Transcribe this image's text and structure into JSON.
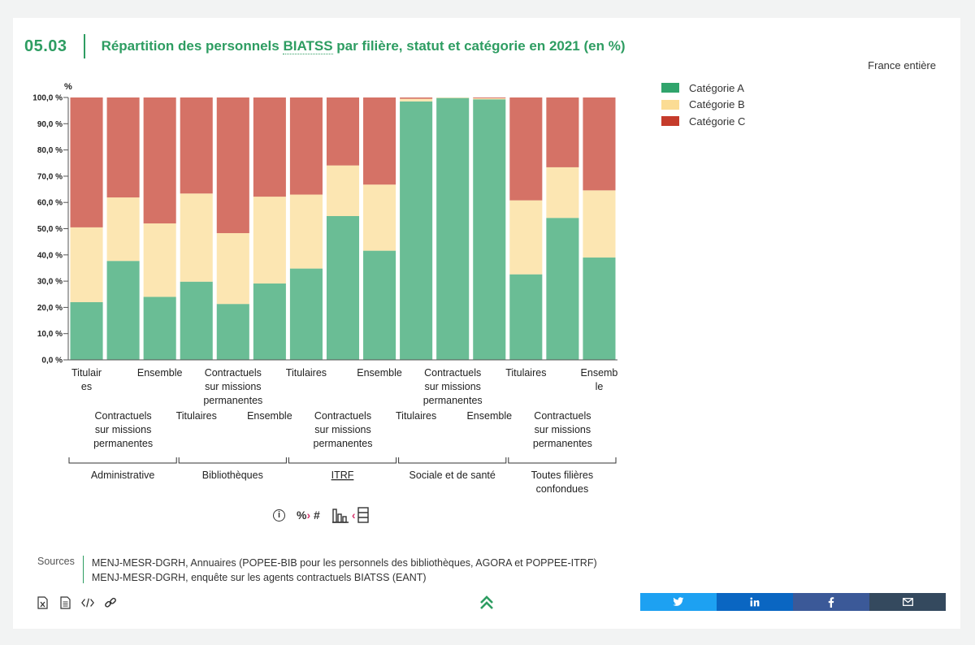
{
  "header": {
    "figure_number": "05.03",
    "title_before": "Répartition des personnels ",
    "title_abbr": "BIATSS",
    "title_after": " par filière, statut et catégorie en 2021 (en %)",
    "scope": "France entière"
  },
  "legend": {
    "items": [
      {
        "label": "Catégorie A",
        "color": "#30a46c"
      },
      {
        "label": "Catégorie B",
        "color": "#fbdc94"
      },
      {
        "label": "Catégorie C",
        "color": "#c53b2b"
      }
    ]
  },
  "chart_data": {
    "type": "bar",
    "stacked": true,
    "y_unit_label": "%",
    "ylim": [
      0,
      100
    ],
    "yticks": [
      0,
      10,
      20,
      30,
      40,
      50,
      60,
      70,
      80,
      90,
      100
    ],
    "ytick_labels": [
      "0,0 %",
      "10,0 %",
      "20,0 %",
      "30,0 %",
      "40,0 %",
      "50,0 %",
      "60,0 %",
      "70,0 %",
      "80,0 %",
      "90,0 %",
      "100,0 %"
    ],
    "groups": [
      {
        "label": "Administrative",
        "categories": [
          "Titulaires",
          "Contractuels sur missions permanentes",
          "Ensemble"
        ]
      },
      {
        "label": "Bibliothèques",
        "categories": [
          "Titulaires",
          "Contractuels sur missions permanentes",
          "Ensemble"
        ]
      },
      {
        "label": "ITRF",
        "categories": [
          "Titulaires",
          "Contractuels sur missions permanentes",
          "Ensemble"
        ]
      },
      {
        "label": "Sociale et de santé",
        "categories": [
          "Titulaires",
          "Contractuels sur missions permanentes",
          "Ensemble"
        ]
      },
      {
        "label": "Toutes filières confondues",
        "categories": [
          "Titulaires",
          "Contractuels sur missions permanentes",
          "Ensemble"
        ]
      }
    ],
    "category_display": [
      [
        "Titulair",
        "es"
      ],
      [
        "Contractuels",
        "sur missions",
        "permanentes"
      ],
      [
        "Ensemble"
      ],
      [
        "Titulaires"
      ],
      [
        "Contractuels",
        "sur missions",
        "permanentes"
      ],
      [
        "Ensemble"
      ],
      [
        "Titulaires"
      ],
      [
        "Contractuels",
        "sur missions",
        "permanentes"
      ],
      [
        "Ensemble"
      ],
      [
        "Titulaires"
      ],
      [
        "Contractuels",
        "sur missions",
        "permanentes"
      ],
      [
        "Ensemble"
      ],
      [
        "Titulaires"
      ],
      [
        "Contractuels",
        "sur missions",
        "permanentes"
      ],
      [
        "Ensemb",
        "le"
      ]
    ],
    "group_display": [
      [
        "Administrative"
      ],
      [
        "Bibliothèques"
      ],
      [
        "ITRF"
      ],
      [
        "Sociale et de santé"
      ],
      [
        "Toutes filières",
        "confondues"
      ]
    ],
    "series": [
      {
        "name": "Catégorie A",
        "color": "#30a46c",
        "values": [
          22.0,
          37.7,
          24.0,
          29.8,
          21.3,
          29.1,
          34.8,
          54.8,
          41.6,
          98.5,
          99.8,
          99.3,
          32.6,
          54.1,
          39.0
        ]
      },
      {
        "name": "Catégorie B",
        "color": "#fbdc94",
        "values": [
          28.5,
          24.2,
          28.0,
          33.6,
          27.0,
          33.1,
          28.2,
          19.3,
          25.2,
          1.0,
          0.2,
          0.4,
          28.2,
          19.3,
          25.6
        ]
      },
      {
        "name": "Catégorie C",
        "color": "#c53b2b",
        "values": [
          49.5,
          38.1,
          48.0,
          36.6,
          51.7,
          37.8,
          37.0,
          25.9,
          33.2,
          0.5,
          0.0,
          0.3,
          39.2,
          26.6,
          35.4
        ]
      }
    ]
  },
  "tools": {
    "percent": "%",
    "hash": "#"
  },
  "sources": {
    "label": "Sources",
    "lines": [
      "MENJ-MESR-DGRH, Annuaires (POPEE-BIB pour les personnels des bibliothèques, AGORA et POPPEE-ITRF)",
      "MENJ-MESR-DGRH, enquête sur les agents contractuels BIATSS (EANT)"
    ]
  },
  "share": {
    "buttons": [
      {
        "name": "twitter",
        "color": "#1da1f2"
      },
      {
        "name": "linkedin",
        "color": "#0a66c2"
      },
      {
        "name": "facebook",
        "color": "#3b5998"
      },
      {
        "name": "email",
        "color": "#34495e"
      }
    ]
  }
}
